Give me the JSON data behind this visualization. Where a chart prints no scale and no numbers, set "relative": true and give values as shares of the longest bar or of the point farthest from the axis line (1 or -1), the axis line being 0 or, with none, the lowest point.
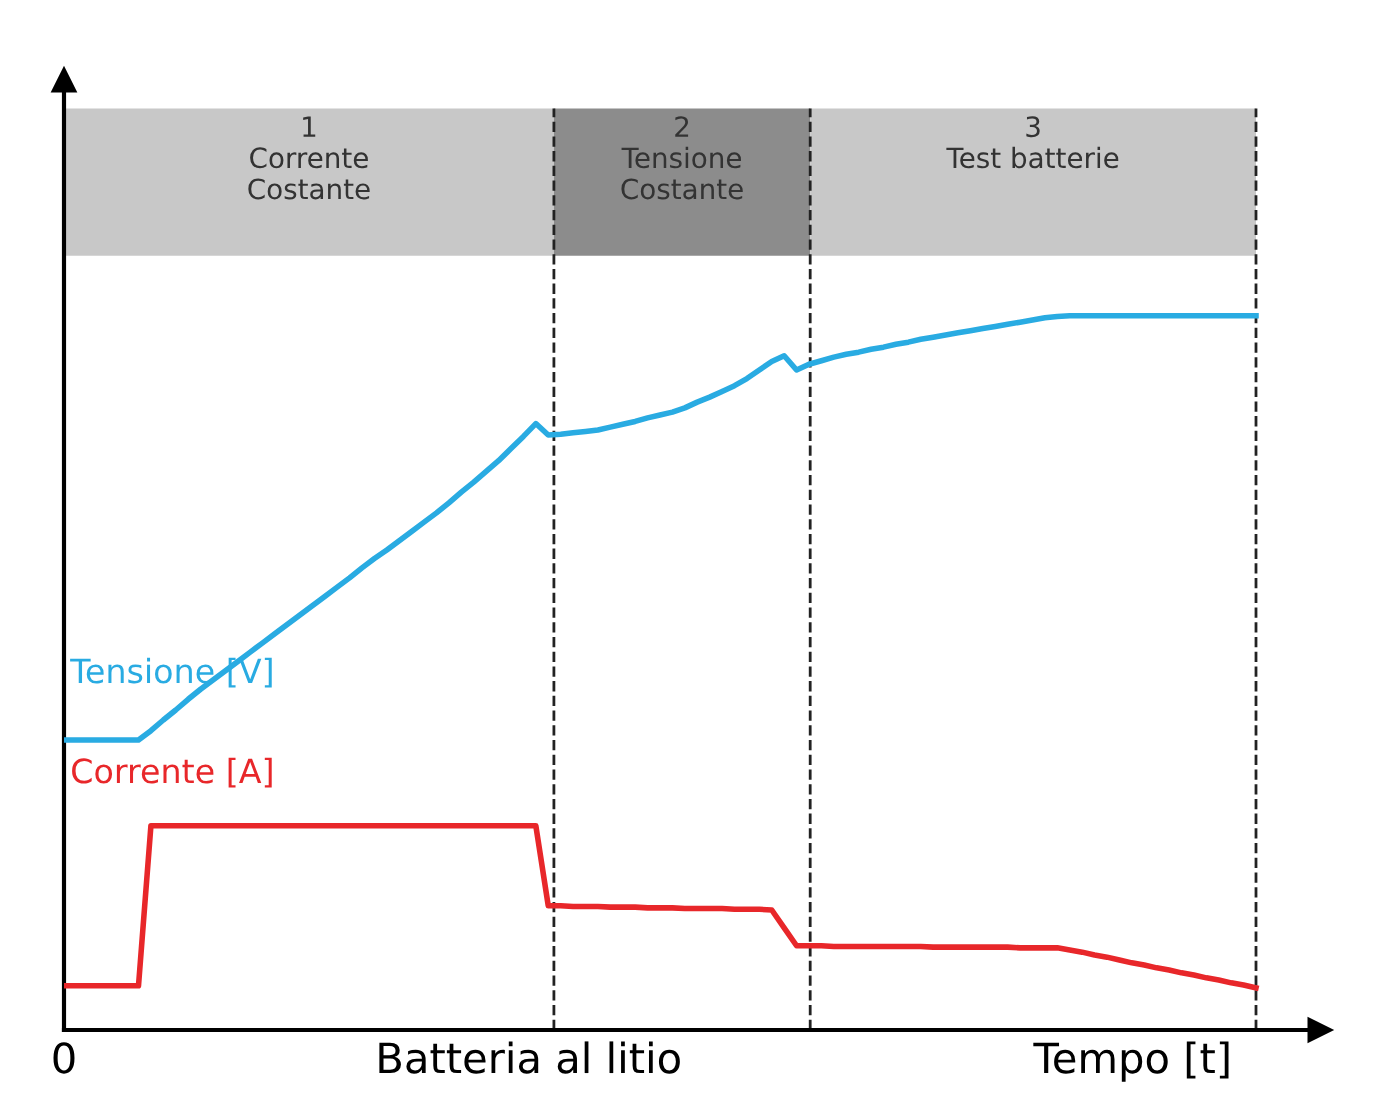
{
  "chart_data": {
    "type": "line",
    "relative": true,
    "xlabel": "Tempo [t]",
    "categories": [
      null,
      null,
      null,
      null,
      null,
      null,
      null,
      null,
      null,
      null,
      null,
      null,
      null,
      null,
      null,
      null,
      null,
      null,
      null,
      null,
      null,
      null,
      null,
      null,
      null,
      null,
      null,
      null,
      null,
      null,
      null,
      null,
      null,
      null,
      null,
      null,
      null,
      null,
      null,
      null,
      null,
      null,
      null,
      null,
      null,
      null,
      null,
      null,
      null,
      null,
      null,
      null,
      null,
      null,
      null,
      null,
      null,
      null,
      null,
      null,
      null,
      null,
      null,
      null,
      null,
      null,
      null,
      null,
      null,
      null,
      null,
      null,
      null,
      null,
      null,
      null,
      null,
      null,
      null,
      null,
      null,
      null,
      null,
      null,
      null,
      null,
      null,
      null,
      null,
      null,
      null,
      null,
      null,
      null,
      null,
      null,
      null
    ],
    "series": [
      {
        "name": "Tensione [V]",
        "color": "#29abe2",
        "values": [
          0.406,
          0.406,
          0.406,
          0.406,
          0.406,
          0.406,
          0.406,
          0.419,
          0.434,
          0.448,
          0.463,
          0.477,
          0.49,
          0.503,
          0.516,
          0.529,
          0.542,
          0.555,
          0.568,
          0.581,
          0.594,
          0.607,
          0.62,
          0.633,
          0.647,
          0.66,
          0.672,
          0.685,
          0.698,
          0.711,
          0.724,
          0.738,
          0.753,
          0.767,
          0.782,
          0.797,
          0.814,
          0.831,
          0.849,
          0.833,
          0.834,
          0.836,
          0.838,
          0.84,
          0.844,
          0.848,
          0.852,
          0.857,
          0.861,
          0.865,
          0.871,
          0.879,
          0.886,
          0.894,
          0.902,
          0.912,
          0.924,
          0.936,
          0.944,
          0.924,
          0.932,
          0.937,
          0.942,
          0.946,
          0.949,
          0.953,
          0.956,
          0.96,
          0.963,
          0.967,
          0.97,
          0.973,
          0.976,
          0.979,
          0.982,
          0.985,
          0.988,
          0.991,
          0.994,
          0.997,
          0.999,
          1.0,
          1.0,
          1.0,
          1.0,
          1.0,
          1.0,
          1.0,
          1.0,
          1.0,
          1.0,
          1.0,
          1.0,
          1.0,
          1.0,
          1.0,
          1.0
        ]
      },
      {
        "name": "Corrente [A]",
        "color": "#e8272a",
        "values": [
          0.062,
          0.062,
          0.062,
          0.062,
          0.062,
          0.062,
          0.062,
          0.286,
          0.286,
          0.286,
          0.286,
          0.286,
          0.286,
          0.286,
          0.286,
          0.286,
          0.286,
          0.286,
          0.286,
          0.286,
          0.286,
          0.286,
          0.286,
          0.286,
          0.286,
          0.286,
          0.286,
          0.286,
          0.286,
          0.286,
          0.286,
          0.286,
          0.286,
          0.286,
          0.286,
          0.286,
          0.286,
          0.286,
          0.286,
          0.174,
          0.174,
          0.173,
          0.173,
          0.173,
          0.172,
          0.172,
          0.172,
          0.171,
          0.171,
          0.171,
          0.17,
          0.17,
          0.17,
          0.17,
          0.169,
          0.169,
          0.169,
          0.168,
          0.143,
          0.118,
          0.118,
          0.118,
          0.117,
          0.117,
          0.117,
          0.117,
          0.117,
          0.117,
          0.117,
          0.117,
          0.116,
          0.116,
          0.116,
          0.116,
          0.116,
          0.116,
          0.116,
          0.115,
          0.115,
          0.115,
          0.115,
          0.112,
          0.109,
          0.105,
          0.102,
          0.098,
          0.094,
          0.091,
          0.087,
          0.084,
          0.08,
          0.077,
          0.073,
          0.07,
          0.066,
          0.063,
          0.059
        ]
      }
    ],
    "annotations": [
      "1\nCorrente\nCostante",
      "2\nTensione\nCostante",
      "3\nTest batterie",
      "0",
      "Batteria al litio"
    ],
    "legend": false,
    "line_style": "solid",
    "marker": "none"
  }
}
